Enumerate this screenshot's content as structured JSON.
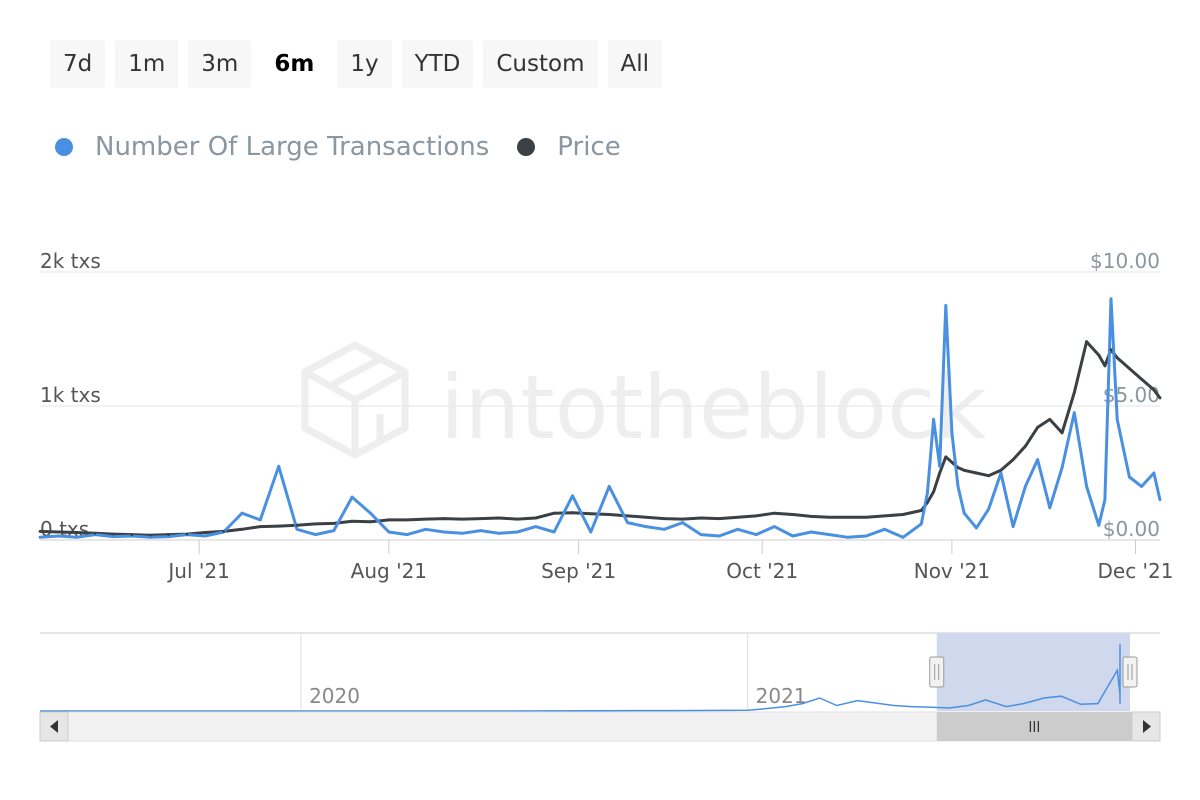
{
  "range_selector": {
    "buttons": [
      "7d",
      "1m",
      "3m",
      "6m",
      "1y",
      "YTD",
      "Custom",
      "All"
    ],
    "selected": "6m"
  },
  "legend": [
    {
      "name": "Number Of Large Transactions",
      "color": "#4a90e2"
    },
    {
      "name": "Price",
      "color": "#3b4045"
    }
  ],
  "watermark": "intotheblock",
  "colors": {
    "transactions": "#4a90e2",
    "price": "#3b4045",
    "grid": "#e6e6e6",
    "navigator_mask": "#cfd8ec"
  },
  "chart_data": {
    "type": "line",
    "x": [
      "2021-06-05",
      "2021-06-08",
      "2021-06-11",
      "2021-06-14",
      "2021-06-17",
      "2021-06-20",
      "2021-06-23",
      "2021-06-26",
      "2021-06-29",
      "2021-07-02",
      "2021-07-05",
      "2021-07-08",
      "2021-07-11",
      "2021-07-14",
      "2021-07-17",
      "2021-07-20",
      "2021-07-23",
      "2021-07-26",
      "2021-07-29",
      "2021-08-01",
      "2021-08-04",
      "2021-08-07",
      "2021-08-10",
      "2021-08-13",
      "2021-08-16",
      "2021-08-19",
      "2021-08-22",
      "2021-08-25",
      "2021-08-28",
      "2021-08-31",
      "2021-09-03",
      "2021-09-06",
      "2021-09-09",
      "2021-09-12",
      "2021-09-15",
      "2021-09-18",
      "2021-09-21",
      "2021-09-24",
      "2021-09-27",
      "2021-09-30",
      "2021-10-03",
      "2021-10-06",
      "2021-10-09",
      "2021-10-12",
      "2021-10-15",
      "2021-10-18",
      "2021-10-21",
      "2021-10-24",
      "2021-10-27",
      "2021-10-28",
      "2021-10-29",
      "2021-10-30",
      "2021-10-31",
      "2021-11-01",
      "2021-11-02",
      "2021-11-03",
      "2021-11-05",
      "2021-11-07",
      "2021-11-09",
      "2021-11-11",
      "2021-11-13",
      "2021-11-15",
      "2021-11-17",
      "2021-11-19",
      "2021-11-21",
      "2021-11-23",
      "2021-11-25",
      "2021-11-26",
      "2021-11-27",
      "2021-11-28",
      "2021-11-30",
      "2021-12-02",
      "2021-12-04",
      "2021-12-05"
    ],
    "series": [
      {
        "name": "Number Of Large Transactions",
        "axis": "left",
        "values": [
          20,
          30,
          20,
          40,
          25,
          30,
          20,
          25,
          40,
          30,
          60,
          200,
          150,
          550,
          80,
          40,
          70,
          320,
          200,
          60,
          40,
          80,
          60,
          50,
          70,
          50,
          60,
          100,
          60,
          330,
          60,
          400,
          130,
          100,
          80,
          130,
          40,
          30,
          80,
          40,
          100,
          30,
          60,
          40,
          20,
          30,
          80,
          20,
          120,
          350,
          900,
          550,
          1750,
          800,
          400,
          200,
          90,
          230,
          500,
          100,
          400,
          600,
          240,
          540,
          950,
          400,
          110,
          300,
          1800,
          900,
          470,
          400,
          500,
          300
        ]
      },
      {
        "name": "Price",
        "axis": "right",
        "values": [
          0.32,
          0.3,
          0.28,
          0.25,
          0.22,
          0.2,
          0.18,
          0.2,
          0.22,
          0.28,
          0.32,
          0.4,
          0.5,
          0.52,
          0.55,
          0.6,
          0.62,
          0.7,
          0.68,
          0.75,
          0.75,
          0.78,
          0.8,
          0.78,
          0.8,
          0.82,
          0.78,
          0.82,
          1.0,
          1.02,
          0.98,
          0.95,
          0.9,
          0.85,
          0.8,
          0.78,
          0.82,
          0.8,
          0.85,
          0.9,
          1.0,
          0.95,
          0.88,
          0.85,
          0.85,
          0.85,
          0.9,
          0.95,
          1.1,
          1.4,
          1.8,
          2.5,
          3.1,
          2.9,
          2.7,
          2.6,
          2.5,
          2.4,
          2.6,
          3.0,
          3.5,
          4.2,
          4.5,
          4.0,
          5.5,
          7.4,
          6.9,
          6.5,
          7.1,
          6.8,
          6.4,
          6.0,
          5.6,
          5.3
        ]
      }
    ],
    "y_left": {
      "ticks": [
        "0 txs",
        "1k txs",
        "2k txs"
      ],
      "range": [
        0,
        2000
      ]
    },
    "y_right": {
      "ticks": [
        "$0.00",
        "$5.00",
        "$10.00"
      ],
      "range": [
        0,
        10
      ]
    },
    "x_ticks": [
      "Jul '21",
      "Aug '21",
      "Sep '21",
      "Oct '21",
      "Nov '21",
      "Dec '21"
    ],
    "x_tick_dates": [
      "2021-07-01",
      "2021-08-01",
      "2021-09-01",
      "2021-10-01",
      "2021-11-01",
      "2021-12-01"
    ],
    "x_range": [
      "2021-06-05",
      "2021-12-05"
    ],
    "grid": true,
    "legend_position": "top-left",
    "navigator": {
      "x_range": [
        "2019-06-01",
        "2021-12-05"
      ],
      "labels": [
        "2020",
        "2021"
      ],
      "label_dates": [
        "2020-01-01",
        "2021-01-01"
      ],
      "series": "Number Of Large Transactions",
      "range_max": 2000,
      "x": [
        "2019-06-01",
        "2020-06-01",
        "2020-11-01",
        "2021-01-01",
        "2021-01-15",
        "2021-02-01",
        "2021-02-15",
        "2021-03-01",
        "2021-03-15",
        "2021-04-01",
        "2021-04-15",
        "2021-05-01",
        "2021-05-15",
        "2021-06-01",
        "2021-06-15",
        "2021-07-01",
        "2021-07-15",
        "2021-08-01",
        "2021-08-15",
        "2021-09-01",
        "2021-09-15",
        "2021-10-01",
        "2021-10-15",
        "2021-10-31",
        "2021-11-10",
        "2021-11-22",
        "2021-11-25",
        "2021-11-28",
        "2021-12-05"
      ],
      "values": [
        0,
        0,
        10,
        20,
        60,
        120,
        200,
        350,
        150,
        280,
        220,
        150,
        120,
        100,
        80,
        150,
        300,
        120,
        200,
        350,
        400,
        180,
        200,
        1100,
        450,
        200,
        1800,
        500,
        1800
      ],
      "selection": [
        "2021-06-05",
        "2021-12-05"
      ]
    }
  }
}
